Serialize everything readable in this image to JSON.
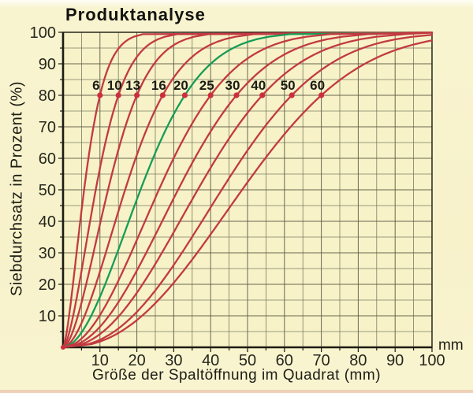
{
  "figure": {
    "background": "#f8f4d0"
  },
  "chart_data": {
    "type": "line",
    "title": "Produktanalyse",
    "xlabel": "Größe der Spaltöffnung im Quadrat (mm)",
    "ylabel": "Siebdurchsatz in Prozent (%)",
    "x_unit_label": "mm",
    "xlim": [
      0,
      100
    ],
    "ylim": [
      0,
      100
    ],
    "x_ticks": [
      10,
      20,
      30,
      40,
      50,
      60,
      70,
      80,
      90,
      100
    ],
    "y_ticks": [
      10,
      20,
      30,
      40,
      50,
      60,
      70,
      80,
      90,
      100
    ],
    "grid": {
      "step": 5,
      "color": "#71705a",
      "major_color": "#5a5944"
    },
    "legend_position": "none",
    "marker_pct": 80,
    "colors": {
      "red": "#c23a41",
      "green": "#169c57",
      "dot": "#cd2e3e",
      "axis": "#1c1c14",
      "border": "#26261e",
      "text": "#26261e",
      "label_text": "#1c1c16",
      "plot_bg": "#f7f2c7"
    },
    "series_note": "Crusher product curves; label = gap setting (mm); each curve starts at (0,0); dot marks the 80%-passing size",
    "series": [
      {
        "gap_label": "6",
        "color": "red",
        "s50_mm": 5.7,
        "s80_mm": 10,
        "s99_mm": 20.2,
        "rr_exponent": 1.5
      },
      {
        "gap_label": "10",
        "color": "red",
        "s50_mm": 8.9,
        "s80_mm": 15,
        "s99_mm": 28.9,
        "rr_exponent": 1.6
      },
      {
        "gap_label": "13",
        "color": "red",
        "s50_mm": 12.2,
        "s80_mm": 20,
        "s99_mm": 37.1,
        "rr_exponent": 1.7
      },
      {
        "gap_label": "16",
        "color": "red",
        "s50_mm": 16.8,
        "s80_mm": 27,
        "s99_mm": 48.7,
        "rr_exponent": 1.78
      },
      {
        "gap_label": "20",
        "color": "green",
        "s50_mm": 21.0,
        "s80_mm": 33,
        "s99_mm": 58.1,
        "rr_exponent": 1.86
      },
      {
        "gap_label": "25",
        "color": "red",
        "s50_mm": 26.0,
        "s80_mm": 40,
        "s99_mm": 68.6,
        "rr_exponent": 1.95
      },
      {
        "gap_label": "30",
        "color": "red",
        "s50_mm": 31.2,
        "s80_mm": 47,
        "s99_mm": 78.5,
        "rr_exponent": 2.05
      },
      {
        "gap_label": "40",
        "color": "red",
        "s50_mm": 36.5,
        "s80_mm": 54,
        "s99_mm": 88.0,
        "rr_exponent": 2.15
      },
      {
        "gap_label": "50",
        "color": "red",
        "s50_mm": 43.0,
        "s80_mm": 62,
        "s99_mm": 97.9,
        "rr_exponent": 2.3
      },
      {
        "gap_label": "60",
        "color": "red",
        "s50_mm": 48.5,
        "s80_mm": 70,
        "s99_mm": 110.6,
        "rr_exponent": 2.3
      }
    ]
  }
}
